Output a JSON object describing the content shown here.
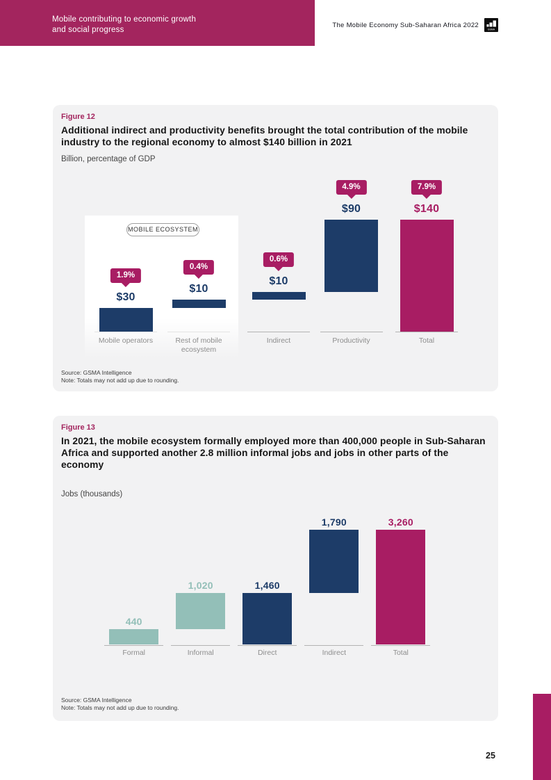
{
  "header": {
    "left_title_line1": "Mobile contributing to economic growth",
    "left_title_line2": "and social progress",
    "right_title": "The Mobile Economy Sub-Saharan Africa 2022",
    "logo_text": "GSMA"
  },
  "page_number": "25",
  "colors": {
    "navy": "#1d3c68",
    "magenta": "#a81d63",
    "teal": "#93bfb8",
    "header_magenta": "#a3255e",
    "card_bg": "#f2f2f3"
  },
  "figure12": {
    "label": "Figure 12",
    "title": "Additional indirect and productivity benefits brought the total contribution of the mobile industry to the regional economy to almost $140 billion in 2021",
    "subtitle": "Billion, percentage of GDP",
    "ecosystem_label": "MOBILE ECOSYSTEM",
    "source": "Source: GSMA Intelligence",
    "note": "Note: Totals may not add up due to rounding."
  },
  "figure13": {
    "label": "Figure 13",
    "title": "In 2021, the mobile ecosystem formally employed more than 400,000 people in Sub-Saharan Africa and supported another 2.8 million informal jobs and jobs in other parts of the economy",
    "subtitle": "Jobs (thousands)",
    "source": "Source: GSMA Intelligence",
    "note": "Note: Totals may not add up due to rounding."
  },
  "chart_data": [
    {
      "id": "fig12",
      "type": "bar",
      "subtype": "waterfall",
      "title": "Additional indirect and productivity benefits brought the total contribution of the mobile industry to the regional economy to almost $140 billion in 2021",
      "unit": "US$ billion, percentage of GDP",
      "categories": [
        "Mobile operators",
        "Rest of mobile ecosystem",
        "Indirect",
        "Productivity",
        "Total"
      ],
      "values": [
        30,
        10,
        10,
        90,
        140
      ],
      "bases": [
        0,
        30,
        40,
        50,
        0
      ],
      "value_labels": [
        "$30",
        "$10",
        "$10",
        "$90",
        "$140"
      ],
      "badges": [
        "1.9%",
        "0.4%",
        "0.6%",
        "4.9%",
        "7.9%"
      ],
      "badge_meaning": "percentage of GDP",
      "colors": [
        "navy",
        "navy",
        "navy",
        "navy",
        "magenta"
      ],
      "group_annotation": "MOBILE ECOSYSTEM (covers Mobile operators + Rest of mobile ecosystem)",
      "ylim": [
        0,
        140
      ],
      "grid": false,
      "legend": false
    },
    {
      "id": "fig13",
      "type": "bar",
      "subtype": "waterfall",
      "title": "In 2021, the mobile ecosystem formally employed more than 400,000 people in Sub-Saharan Africa and supported another 2.8 million informal jobs and jobs in other parts of the economy",
      "unit": "Jobs (thousands)",
      "categories": [
        "Formal",
        "Informal",
        "Direct",
        "Indirect",
        "Total"
      ],
      "values": [
        440,
        1020,
        1460,
        1790,
        3260
      ],
      "bases": [
        0,
        440,
        0,
        1460,
        0
      ],
      "value_labels": [
        "440",
        "1,020",
        "1,460",
        "1,790",
        "3,260"
      ],
      "colors": [
        "teal",
        "teal",
        "navy",
        "navy",
        "magenta"
      ],
      "ylim": [
        0,
        3260
      ],
      "grid": false,
      "legend": false
    }
  ]
}
